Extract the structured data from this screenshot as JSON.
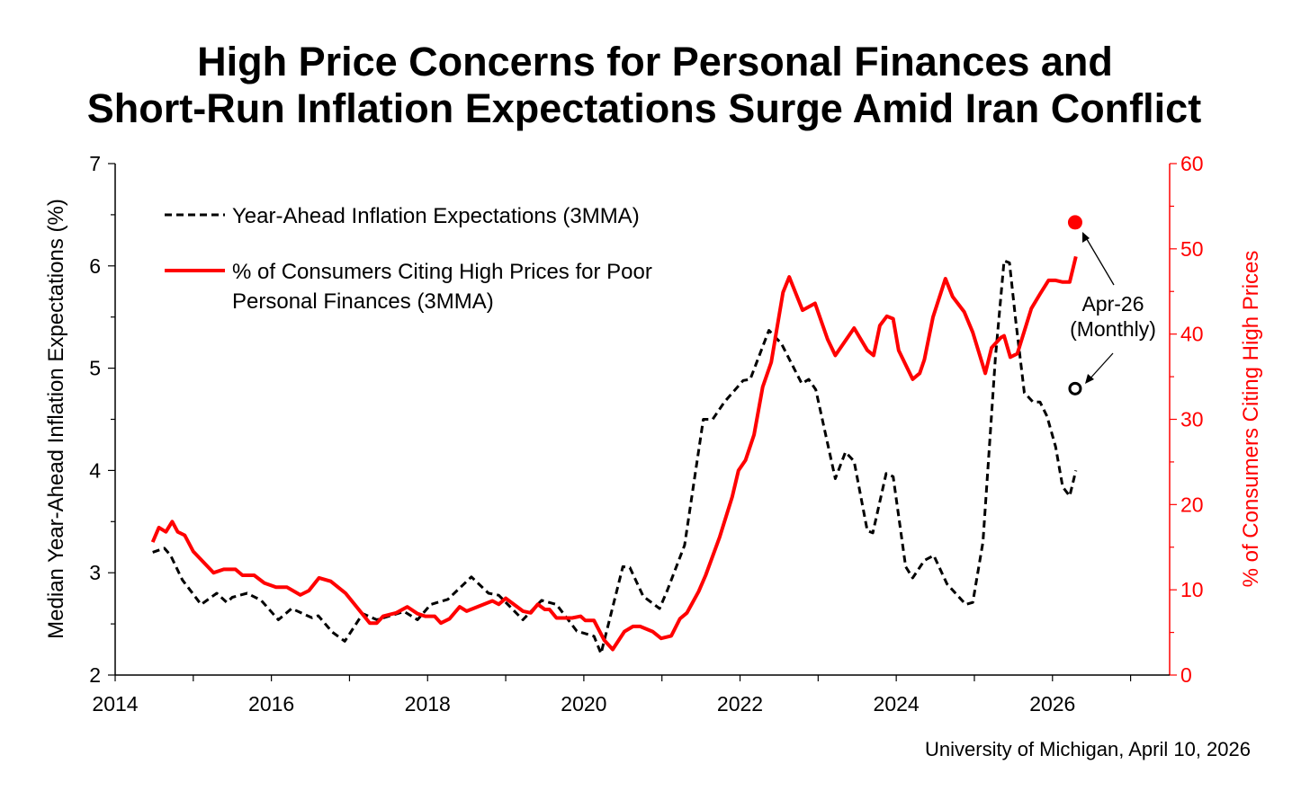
{
  "chart_data": {
    "type": "line",
    "title_lines": [
      "High Price Concerns for Personal Finances and",
      "Short-Run Inflation Expectations Surge Amid Iran Conflict"
    ],
    "xlabel": "",
    "ylabel_left": "Median Year-Ahead Inflation Expectations (%)",
    "ylabel_right": "% of Consumers Citing High Prices",
    "xlim": [
      2014,
      2027.5
    ],
    "ylim_left": [
      2,
      7
    ],
    "ylim_right": [
      0,
      60
    ],
    "x_ticks": [
      "2014",
      "2016",
      "2018",
      "2020",
      "2022",
      "2024",
      "2026"
    ],
    "x_tick_values": [
      2014,
      2016,
      2018,
      2020,
      2022,
      2024,
      2026
    ],
    "y_left_ticks": [
      "2",
      "3",
      "4",
      "5",
      "6",
      "7"
    ],
    "y_left_tick_values": [
      2,
      3,
      4,
      5,
      6,
      7
    ],
    "y_right_ticks": [
      "0",
      "10",
      "20",
      "30",
      "40",
      "50",
      "60"
    ],
    "y_right_tick_values": [
      0,
      10,
      20,
      30,
      40,
      50,
      60
    ],
    "grid": false,
    "legend_placement": "top-left",
    "colors": {
      "expectations": "#000000",
      "high_prices": "#ff0000"
    },
    "series": [
      {
        "name": "Year-Ahead Inflation Expectations (3MMA)",
        "axis": "left",
        "style": "dashed",
        "x": [
          2014.48,
          2014.63,
          2014.71,
          2014.86,
          2015.1,
          2015.3,
          2015.43,
          2015.5,
          2015.69,
          2015.87,
          2016.09,
          2016.26,
          2016.52,
          2016.6,
          2016.78,
          2016.94,
          2017.17,
          2017.35,
          2017.7,
          2017.87,
          2018.04,
          2018.26,
          2018.56,
          2018.78,
          2018.91,
          2019.22,
          2019.46,
          2019.65,
          2019.91,
          2020.13,
          2020.22,
          2020.5,
          2020.59,
          2020.76,
          2020.97,
          2021.07,
          2021.29,
          2021.53,
          2021.65,
          2021.8,
          2022.04,
          2022.13,
          2022.37,
          2022.53,
          2022.79,
          2022.88,
          2022.97,
          2023.22,
          2023.35,
          2023.46,
          2023.63,
          2023.7,
          2023.87,
          2023.96,
          2024.12,
          2024.21,
          2024.36,
          2024.48,
          2024.65,
          2024.89,
          2024.98,
          2025.11,
          2025.27,
          2025.38,
          2025.45,
          2025.53,
          2025.64,
          2025.75,
          2025.84,
          2025.93,
          2026.04,
          2026.13,
          2026.22,
          2026.3
        ],
        "values": [
          3.2,
          3.24,
          3.17,
          2.93,
          2.69,
          2.8,
          2.71,
          2.76,
          2.8,
          2.73,
          2.54,
          2.65,
          2.56,
          2.58,
          2.42,
          2.33,
          2.6,
          2.54,
          2.62,
          2.54,
          2.69,
          2.74,
          2.96,
          2.8,
          2.78,
          2.54,
          2.73,
          2.69,
          2.43,
          2.38,
          2.21,
          3.06,
          3.05,
          2.77,
          2.65,
          2.83,
          3.27,
          4.5,
          4.5,
          4.67,
          4.88,
          4.89,
          5.37,
          5.24,
          4.85,
          4.89,
          4.79,
          3.92,
          4.18,
          4.09,
          3.41,
          3.39,
          3.97,
          3.94,
          3.06,
          2.95,
          3.12,
          3.17,
          2.89,
          2.69,
          2.71,
          3.3,
          5.11,
          6.05,
          6.03,
          5.46,
          4.76,
          4.67,
          4.67,
          4.53,
          4.23,
          3.84,
          3.75,
          4.0
        ]
      },
      {
        "name": "% of Consumers Citing High Prices for Poor Personal Finances (3MMA)",
        "legend_lines": [
          "% of Consumers Citing High Prices for Poor",
          "Personal Finances (3MMA)"
        ],
        "axis": "right",
        "style": "solid",
        "x": [
          2014.48,
          2014.56,
          2014.65,
          2014.73,
          2014.8,
          2014.89,
          2015.0,
          2015.26,
          2015.39,
          2015.54,
          2015.63,
          2015.78,
          2015.91,
          2016.06,
          2016.2,
          2016.37,
          2016.48,
          2016.61,
          2016.76,
          2016.95,
          2017.26,
          2017.35,
          2017.43,
          2017.6,
          2017.74,
          2017.87,
          2017.97,
          2018.09,
          2018.17,
          2018.28,
          2018.41,
          2018.5,
          2018.83,
          2018.91,
          2019.0,
          2019.22,
          2019.32,
          2019.41,
          2019.5,
          2019.56,
          2019.65,
          2019.85,
          2019.96,
          2020.02,
          2020.13,
          2020.26,
          2020.37,
          2020.52,
          2020.63,
          2020.72,
          2020.88,
          2020.99,
          2021.12,
          2021.23,
          2021.32,
          2021.47,
          2021.56,
          2021.74,
          2021.9,
          2021.98,
          2022.07,
          2022.18,
          2022.29,
          2022.4,
          2022.55,
          2022.63,
          2022.8,
          2022.96,
          2023.12,
          2023.22,
          2023.46,
          2023.63,
          2023.71,
          2023.79,
          2023.88,
          2023.96,
          2024.03,
          2024.21,
          2024.3,
          2024.36,
          2024.47,
          2024.63,
          2024.72,
          2024.87,
          2024.98,
          2025.14,
          2025.22,
          2025.34,
          2025.38,
          2025.46,
          2025.55,
          2025.73,
          2025.84,
          2025.95,
          2026.04,
          2026.13,
          2026.22,
          2026.3
        ],
        "values": [
          15.6,
          17.3,
          16.8,
          18.0,
          16.8,
          16.4,
          14.5,
          12.0,
          12.4,
          12.4,
          11.7,
          11.7,
          10.8,
          10.3,
          10.3,
          9.4,
          9.9,
          11.4,
          11.0,
          9.6,
          6.1,
          6.1,
          6.9,
          7.3,
          8.0,
          7.2,
          6.9,
          6.9,
          6.1,
          6.6,
          8.0,
          7.5,
          8.7,
          8.3,
          9.0,
          7.5,
          7.3,
          8.3,
          7.7,
          7.7,
          6.7,
          6.7,
          6.9,
          6.4,
          6.4,
          4.1,
          3.0,
          5.1,
          5.7,
          5.7,
          5.1,
          4.3,
          4.6,
          6.6,
          7.3,
          9.8,
          11.7,
          16.2,
          20.9,
          24.0,
          25.2,
          28.2,
          33.8,
          36.7,
          44.9,
          46.7,
          42.8,
          43.6,
          39.4,
          37.5,
          40.7,
          38.1,
          37.5,
          41.0,
          42.1,
          41.8,
          38.1,
          34.7,
          35.4,
          37.0,
          42.0,
          46.5,
          44.4,
          42.6,
          40.2,
          35.4,
          38.4,
          39.6,
          39.8,
          37.3,
          37.7,
          43.0,
          44.7,
          46.3,
          46.3,
          46.1,
          46.1,
          49.1
        ]
      }
    ],
    "monthly_points": [
      {
        "name": "High prices Apr-26 (monthly)",
        "axis": "right",
        "x": 2026.29,
        "value": 53.1,
        "marker": "filled-red-circle"
      },
      {
        "name": "Expectations Apr-26 (monthly)",
        "axis": "left",
        "x": 2026.29,
        "value": 4.8,
        "marker": "open-black-circle"
      }
    ],
    "annotation": {
      "lines": [
        "Apr-26",
        "(Monthly)"
      ]
    },
    "source": "University of Michigan, April 10, 2026"
  }
}
